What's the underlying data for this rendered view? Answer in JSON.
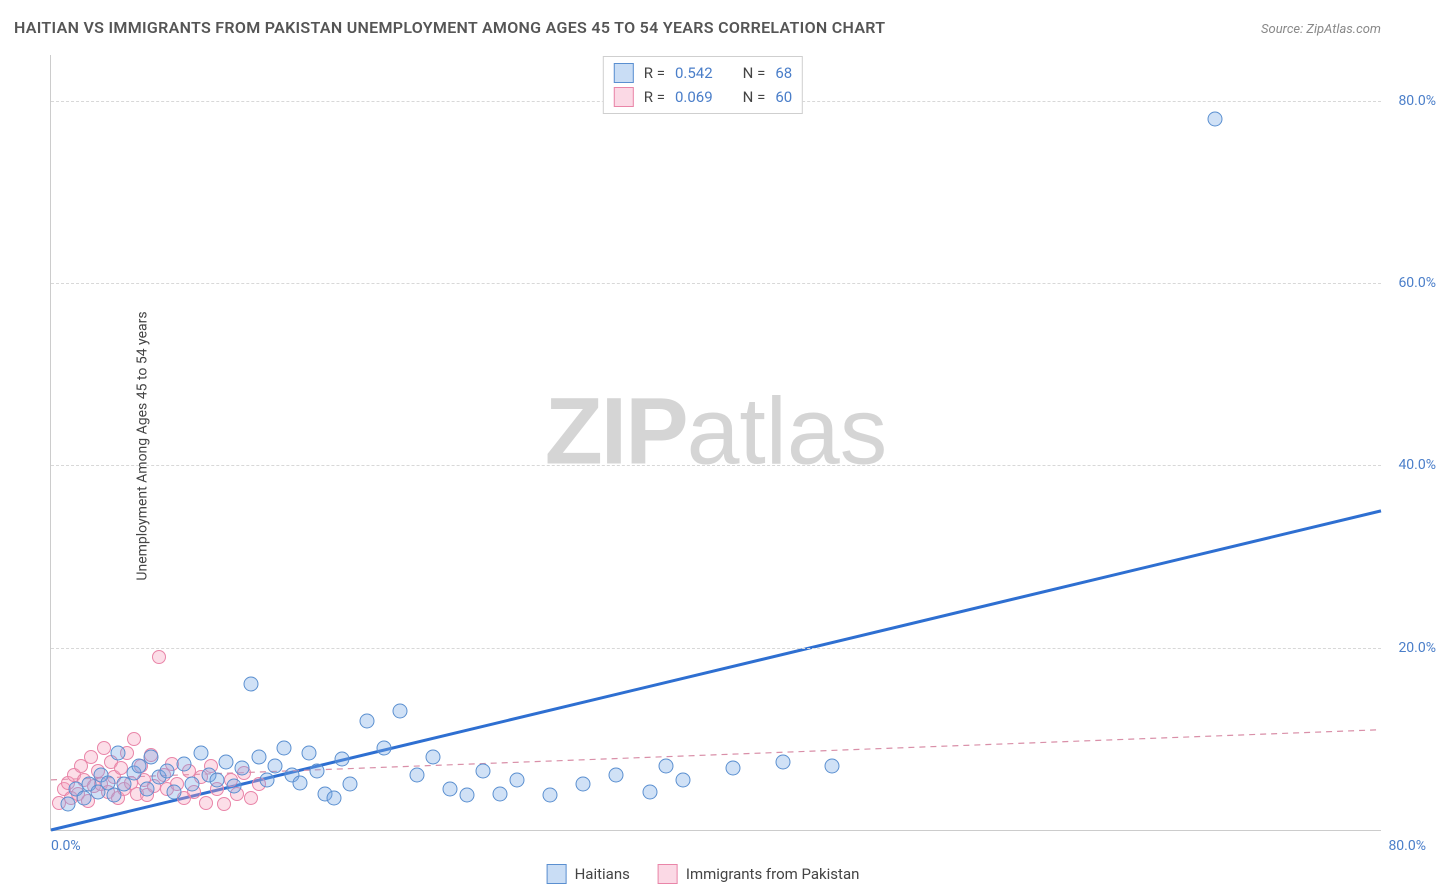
{
  "title": "HAITIAN VS IMMIGRANTS FROM PAKISTAN UNEMPLOYMENT AMONG AGES 45 TO 54 YEARS CORRELATION CHART",
  "source": "Source: ZipAtlas.com",
  "ylabel": "Unemployment Among Ages 45 to 54 years",
  "watermark_left": "ZIP",
  "watermark_right": "atlas",
  "chart": {
    "type": "scatter",
    "axis_color": "#cccccc",
    "grid_color": "#d8d8d8",
    "tick_color": "#4a7ec9",
    "background_color": "#ffffff",
    "xlim": [
      0,
      80
    ],
    "ylim": [
      0,
      85
    ],
    "xticks": [
      {
        "value": 0,
        "label": "0.0%",
        "pos": "left"
      },
      {
        "value": 80,
        "label": "80.0%",
        "pos": "right"
      }
    ],
    "yticks": [
      {
        "value": 20,
        "label": "20.0%"
      },
      {
        "value": 40,
        "label": "40.0%"
      },
      {
        "value": 60,
        "label": "60.0%"
      },
      {
        "value": 80,
        "label": "80.0%"
      }
    ],
    "series": [
      {
        "name": "Haitians",
        "class": "blue",
        "color": "#5a8fd0",
        "fill": "rgba(120,170,230,0.35)",
        "marker_size": 15,
        "R": "0.542",
        "N": "68",
        "trend": {
          "x1": 0,
          "y1": 0,
          "x2": 80,
          "y2": 35,
          "stroke": "#2e6fd1",
          "width": 3,
          "dash": "none"
        },
        "points": [
          [
            1,
            2.8
          ],
          [
            1.5,
            4.5
          ],
          [
            2,
            3.5
          ],
          [
            2.3,
            5
          ],
          [
            2.8,
            4.2
          ],
          [
            3,
            6
          ],
          [
            3.4,
            5.2
          ],
          [
            3.8,
            3.8
          ],
          [
            4,
            8.5
          ],
          [
            4.4,
            5
          ],
          [
            5,
            6.2
          ],
          [
            5.3,
            7
          ],
          [
            5.8,
            4.5
          ],
          [
            6,
            8
          ],
          [
            6.5,
            5.8
          ],
          [
            7,
            6.5
          ],
          [
            7.4,
            4.2
          ],
          [
            8,
            7.2
          ],
          [
            8.5,
            5
          ],
          [
            9,
            8.5
          ],
          [
            9.5,
            6
          ],
          [
            10,
            5.5
          ],
          [
            10.5,
            7.5
          ],
          [
            11,
            4.8
          ],
          [
            11.5,
            6.8
          ],
          [
            12,
            16
          ],
          [
            12.5,
            8
          ],
          [
            13,
            5.5
          ],
          [
            13.5,
            7
          ],
          [
            14,
            9
          ],
          [
            14.5,
            6
          ],
          [
            15,
            5.2
          ],
          [
            15.5,
            8.5
          ],
          [
            16,
            6.5
          ],
          [
            16.5,
            4
          ],
          [
            17,
            3.5
          ],
          [
            17.5,
            7.8
          ],
          [
            18,
            5
          ],
          [
            19,
            12
          ],
          [
            20,
            9
          ],
          [
            21,
            13
          ],
          [
            22,
            6
          ],
          [
            23,
            8
          ],
          [
            24,
            4.5
          ],
          [
            25,
            3.8
          ],
          [
            26,
            6.5
          ],
          [
            27,
            4
          ],
          [
            28,
            5.5
          ],
          [
            30,
            3.8
          ],
          [
            32,
            5
          ],
          [
            34,
            6
          ],
          [
            36,
            4.2
          ],
          [
            37,
            7
          ],
          [
            38,
            5.5
          ],
          [
            41,
            6.8
          ],
          [
            44,
            7.5
          ],
          [
            47,
            7
          ],
          [
            70,
            78
          ]
        ]
      },
      {
        "name": "Immigrants from Pakistan",
        "class": "pink",
        "color": "#e985a8",
        "fill": "rgba(245,160,190,0.35)",
        "marker_size": 14,
        "R": "0.069",
        "N": "60",
        "trend": {
          "x1": 0,
          "y1": 5.5,
          "x2": 80,
          "y2": 11,
          "stroke": "#d98fa8",
          "width": 1.2,
          "dash": "6,5"
        },
        "points": [
          [
            0.5,
            3
          ],
          [
            0.8,
            4.5
          ],
          [
            1,
            5.2
          ],
          [
            1.2,
            3.5
          ],
          [
            1.4,
            6
          ],
          [
            1.6,
            4
          ],
          [
            1.8,
            7
          ],
          [
            2,
            5.5
          ],
          [
            2.2,
            3.2
          ],
          [
            2.4,
            8
          ],
          [
            2.6,
            4.8
          ],
          [
            2.8,
            6.5
          ],
          [
            3,
            5
          ],
          [
            3.2,
            9
          ],
          [
            3.4,
            4.2
          ],
          [
            3.6,
            7.5
          ],
          [
            3.8,
            5.8
          ],
          [
            4,
            3.5
          ],
          [
            4.2,
            6.8
          ],
          [
            4.4,
            4.5
          ],
          [
            4.6,
            8.5
          ],
          [
            4.8,
            5.2
          ],
          [
            5,
            10
          ],
          [
            5.2,
            4
          ],
          [
            5.4,
            7
          ],
          [
            5.6,
            5.5
          ],
          [
            5.8,
            3.8
          ],
          [
            6,
            8.2
          ],
          [
            6.2,
            4.8
          ],
          [
            6.5,
            19
          ],
          [
            6.8,
            6
          ],
          [
            7,
            4.5
          ],
          [
            7.3,
            7.2
          ],
          [
            7.6,
            5
          ],
          [
            8,
            3.5
          ],
          [
            8.3,
            6.5
          ],
          [
            8.6,
            4.2
          ],
          [
            9,
            5.8
          ],
          [
            9.3,
            3
          ],
          [
            9.6,
            7
          ],
          [
            10,
            4.5
          ],
          [
            10.4,
            2.8
          ],
          [
            10.8,
            5.5
          ],
          [
            11.2,
            4
          ],
          [
            11.6,
            6.2
          ],
          [
            12,
            3.5
          ],
          [
            12.5,
            5
          ]
        ]
      }
    ],
    "legend_top": {
      "rows": [
        {
          "swatch": "blue",
          "r_label": "R = ",
          "r_val": "0.542",
          "n_label": "N = ",
          "n_val": "68"
        },
        {
          "swatch": "pink",
          "r_label": "R = ",
          "r_val": "0.069",
          "n_label": "N = ",
          "n_val": "60"
        }
      ]
    },
    "legend_bottom": [
      {
        "swatch": "blue",
        "label": "Haitians"
      },
      {
        "swatch": "pink",
        "label": "Immigrants from Pakistan"
      }
    ]
  }
}
